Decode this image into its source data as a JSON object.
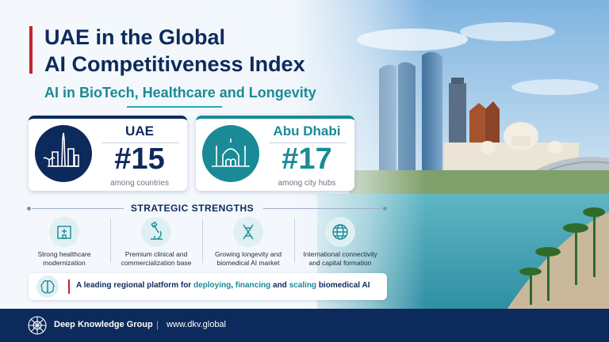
{
  "header": {
    "title_line1": "UAE in the Global",
    "title_line2": "AI Competitiveness Index",
    "subtitle": "AI in BioTech, Healthcare and Longevity"
  },
  "cards": [
    {
      "name": "UAE",
      "rank": "#15",
      "sub": "among countries",
      "icon": "uae-skyline-icon"
    },
    {
      "name": "Abu Dhabi",
      "rank": "#17",
      "sub": "among city hubs",
      "icon": "mosque-icon"
    }
  ],
  "strengths": {
    "title": "STRATEGIC STRENGTHS",
    "items": [
      {
        "line1": "Strong healthcare",
        "line2": "modernization",
        "icon": "hospital-icon"
      },
      {
        "line1": "Premium clinical and",
        "line2": "commercialization base",
        "icon": "microscope-icon"
      },
      {
        "line1": "Growing longevity and",
        "line2": "biomedical AI market",
        "icon": "dna-icon"
      },
      {
        "line1": "International connectivity",
        "line2": "and capital formation",
        "icon": "globe-icon"
      }
    ]
  },
  "banner": {
    "prefix": "A leading regional platform for ",
    "w1": "deploying",
    "sep1": ", ",
    "w2": "financing",
    "sep2": " and ",
    "w3": "scaling",
    "suffix": " biomedical AI",
    "icon": "brain-icon"
  },
  "footer": {
    "org": "Deep Knowledge Group",
    "separator": "|",
    "url": "www.dkv.global",
    "icon": "dkg-logo-icon"
  },
  "colors": {
    "navy": "#0d2a5c",
    "teal": "#1a8a96",
    "red": "#c8202f"
  }
}
